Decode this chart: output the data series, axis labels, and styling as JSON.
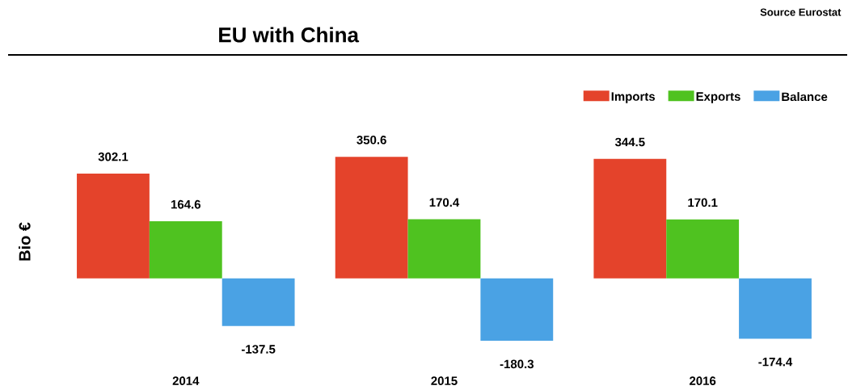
{
  "chart_data": {
    "type": "bar",
    "title": "EU with China",
    "ylabel": "Bio €",
    "annotations": [
      "Source Eurostat"
    ],
    "categories": [
      "2014",
      "2015",
      "2016"
    ],
    "series": [
      {
        "name": "Imports",
        "color": "#e4432b",
        "values": [
          302.1,
          350.6,
          344.5
        ]
      },
      {
        "name": "Exports",
        "color": "#4fc220",
        "values": [
          164.6,
          170.4,
          170.1
        ]
      },
      {
        "name": "Balance",
        "color": "#4aa2e4",
        "values": [
          -137.5,
          -180.3,
          -174.4
        ]
      }
    ],
    "data_labels": true,
    "legend": "top right"
  }
}
